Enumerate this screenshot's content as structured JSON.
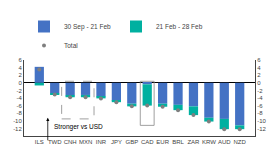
{
  "chart_data": {
    "type": "bar",
    "categories": [
      "ILS",
      "TWD",
      "CNH",
      "MXN",
      "INR",
      "JPY",
      "GBP",
      "CAD",
      "EUR",
      "BRL",
      "ZAR",
      "KRW",
      "AUD",
      "NZD"
    ],
    "series": [
      {
        "name": "30 Sep - 21 Feb",
        "type": "bar",
        "color": "#4472C4",
        "values": [
          4.2,
          -2.8,
          -3.3,
          -3.2,
          -3.6,
          -4.7,
          -5.5,
          -0.4,
          -5.5,
          -5.8,
          -6.2,
          -9.2,
          -9.5,
          -11.2
        ]
      },
      {
        "name": "21 Feb - 28 Feb",
        "type": "bar",
        "color": "#00B0A0",
        "values": [
          -0.7,
          -0.3,
          -0.5,
          -0.6,
          -0.5,
          -0.4,
          -0.7,
          -5.6,
          -0.8,
          -1.4,
          -2.3,
          -1.0,
          -2.7,
          -1.0
        ]
      },
      {
        "name": "Total",
        "type": "scatter",
        "marker": "circle",
        "color": "#7F7F7F",
        "values": [
          3.5,
          -3.1,
          -3.8,
          -3.8,
          -4.1,
          -5.1,
          -6.2,
          -6.0,
          -6.3,
          -7.2,
          -8.5,
          -10.2,
          -12.2,
          -12.2
        ]
      }
    ],
    "stacked": true,
    "ylim": [
      -14,
      6
    ],
    "yticks": [
      -12,
      -10,
      -8,
      -6,
      -4,
      -2,
      0,
      2,
      4,
      6
    ],
    "y2lim": [
      -14,
      6
    ],
    "y2ticks": [
      -12,
      -10,
      -8,
      -6,
      -4,
      -2,
      0,
      2,
      4,
      6
    ],
    "annotations": [
      "Stronger vs USD"
    ],
    "legend": "upper left",
    "grid": false
  }
}
